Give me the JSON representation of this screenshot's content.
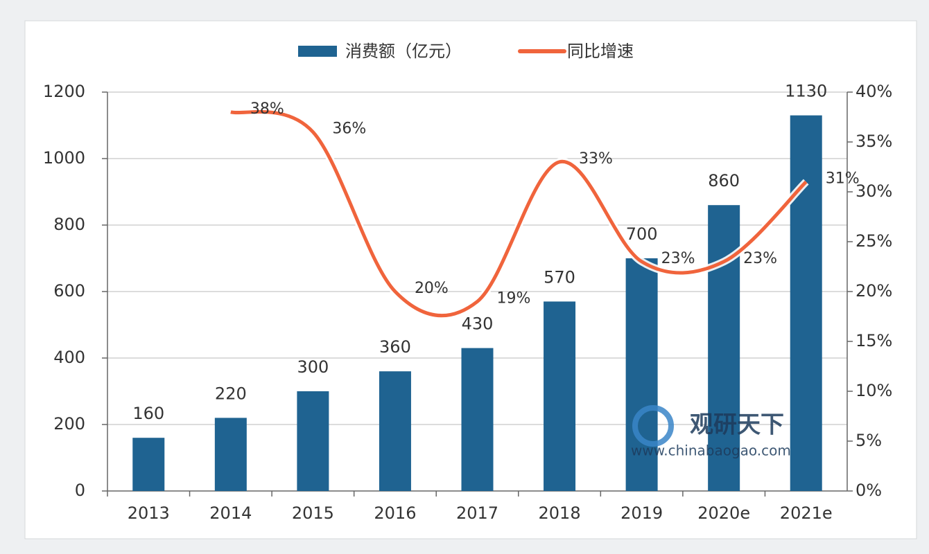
{
  "chart_data": {
    "type": "bar-line",
    "categories": [
      "2013",
      "2014",
      "2015",
      "2016",
      "2017",
      "2018",
      "2019",
      "2020e",
      "2021e"
    ],
    "series": [
      {
        "name": "消费额（亿元）",
        "type": "bar",
        "color": "#1f6391",
        "values": [
          160,
          220,
          300,
          360,
          430,
          570,
          700,
          860,
          1130
        ]
      },
      {
        "name": "同比增速",
        "type": "line",
        "axis": "y2",
        "color": "#f0643c",
        "values": [
          null,
          38,
          36,
          20,
          19,
          33,
          23,
          23,
          31
        ],
        "value_labels": [
          null,
          "38%",
          "36%",
          "20%",
          "19%",
          "33%",
          "23%",
          "23%",
          "31%"
        ]
      }
    ],
    "ylim": [
      0,
      1200
    ],
    "yticks": [
      0,
      200,
      400,
      600,
      800,
      1000,
      1200
    ],
    "y2lim": [
      0,
      40
    ],
    "y2ticks": [
      {
        "value": 0,
        "label": "0%"
      },
      {
        "value": 5,
        "label": "5%"
      },
      {
        "value": 10,
        "label": "10%"
      },
      {
        "value": 15,
        "label": "15%"
      },
      {
        "value": 20,
        "label": "20%"
      },
      {
        "value": 25,
        "label": "25%"
      },
      {
        "value": 30,
        "label": "30%"
      },
      {
        "value": 35,
        "label": "35%"
      },
      {
        "value": 40,
        "label": "40%"
      }
    ],
    "grid": true,
    "legend": "top",
    "watermark": {
      "brand": "观研天下",
      "url": "www.chinabaogao.com"
    }
  }
}
